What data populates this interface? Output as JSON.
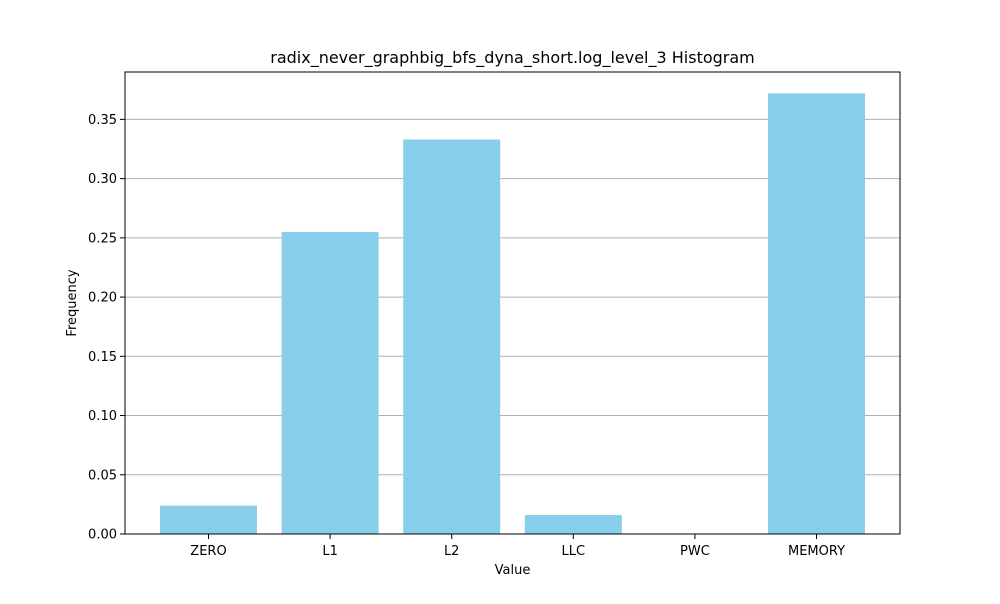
{
  "chart_data": {
    "type": "bar",
    "title": "radix_never_graphbig_bfs_dyna_short.log_level_3 Histogram",
    "xlabel": "Value",
    "ylabel": "Frequency",
    "categories": [
      "ZERO",
      "L1",
      "L2",
      "LLC",
      "PWC",
      "MEMORY"
    ],
    "values": [
      0.024,
      0.255,
      0.333,
      0.016,
      0.0,
      0.372
    ],
    "ylim": [
      0,
      0.39
    ],
    "yticks": [
      0.0,
      0.05,
      0.1,
      0.15,
      0.2,
      0.25,
      0.3,
      0.35
    ],
    "ytick_labels": [
      "0.00",
      "0.05",
      "0.10",
      "0.15",
      "0.20",
      "0.25",
      "0.30",
      "0.35"
    ],
    "grid": "y",
    "legend": "none",
    "bar_color": "#87ceeb",
    "grid_color": "#b0b0b0"
  }
}
